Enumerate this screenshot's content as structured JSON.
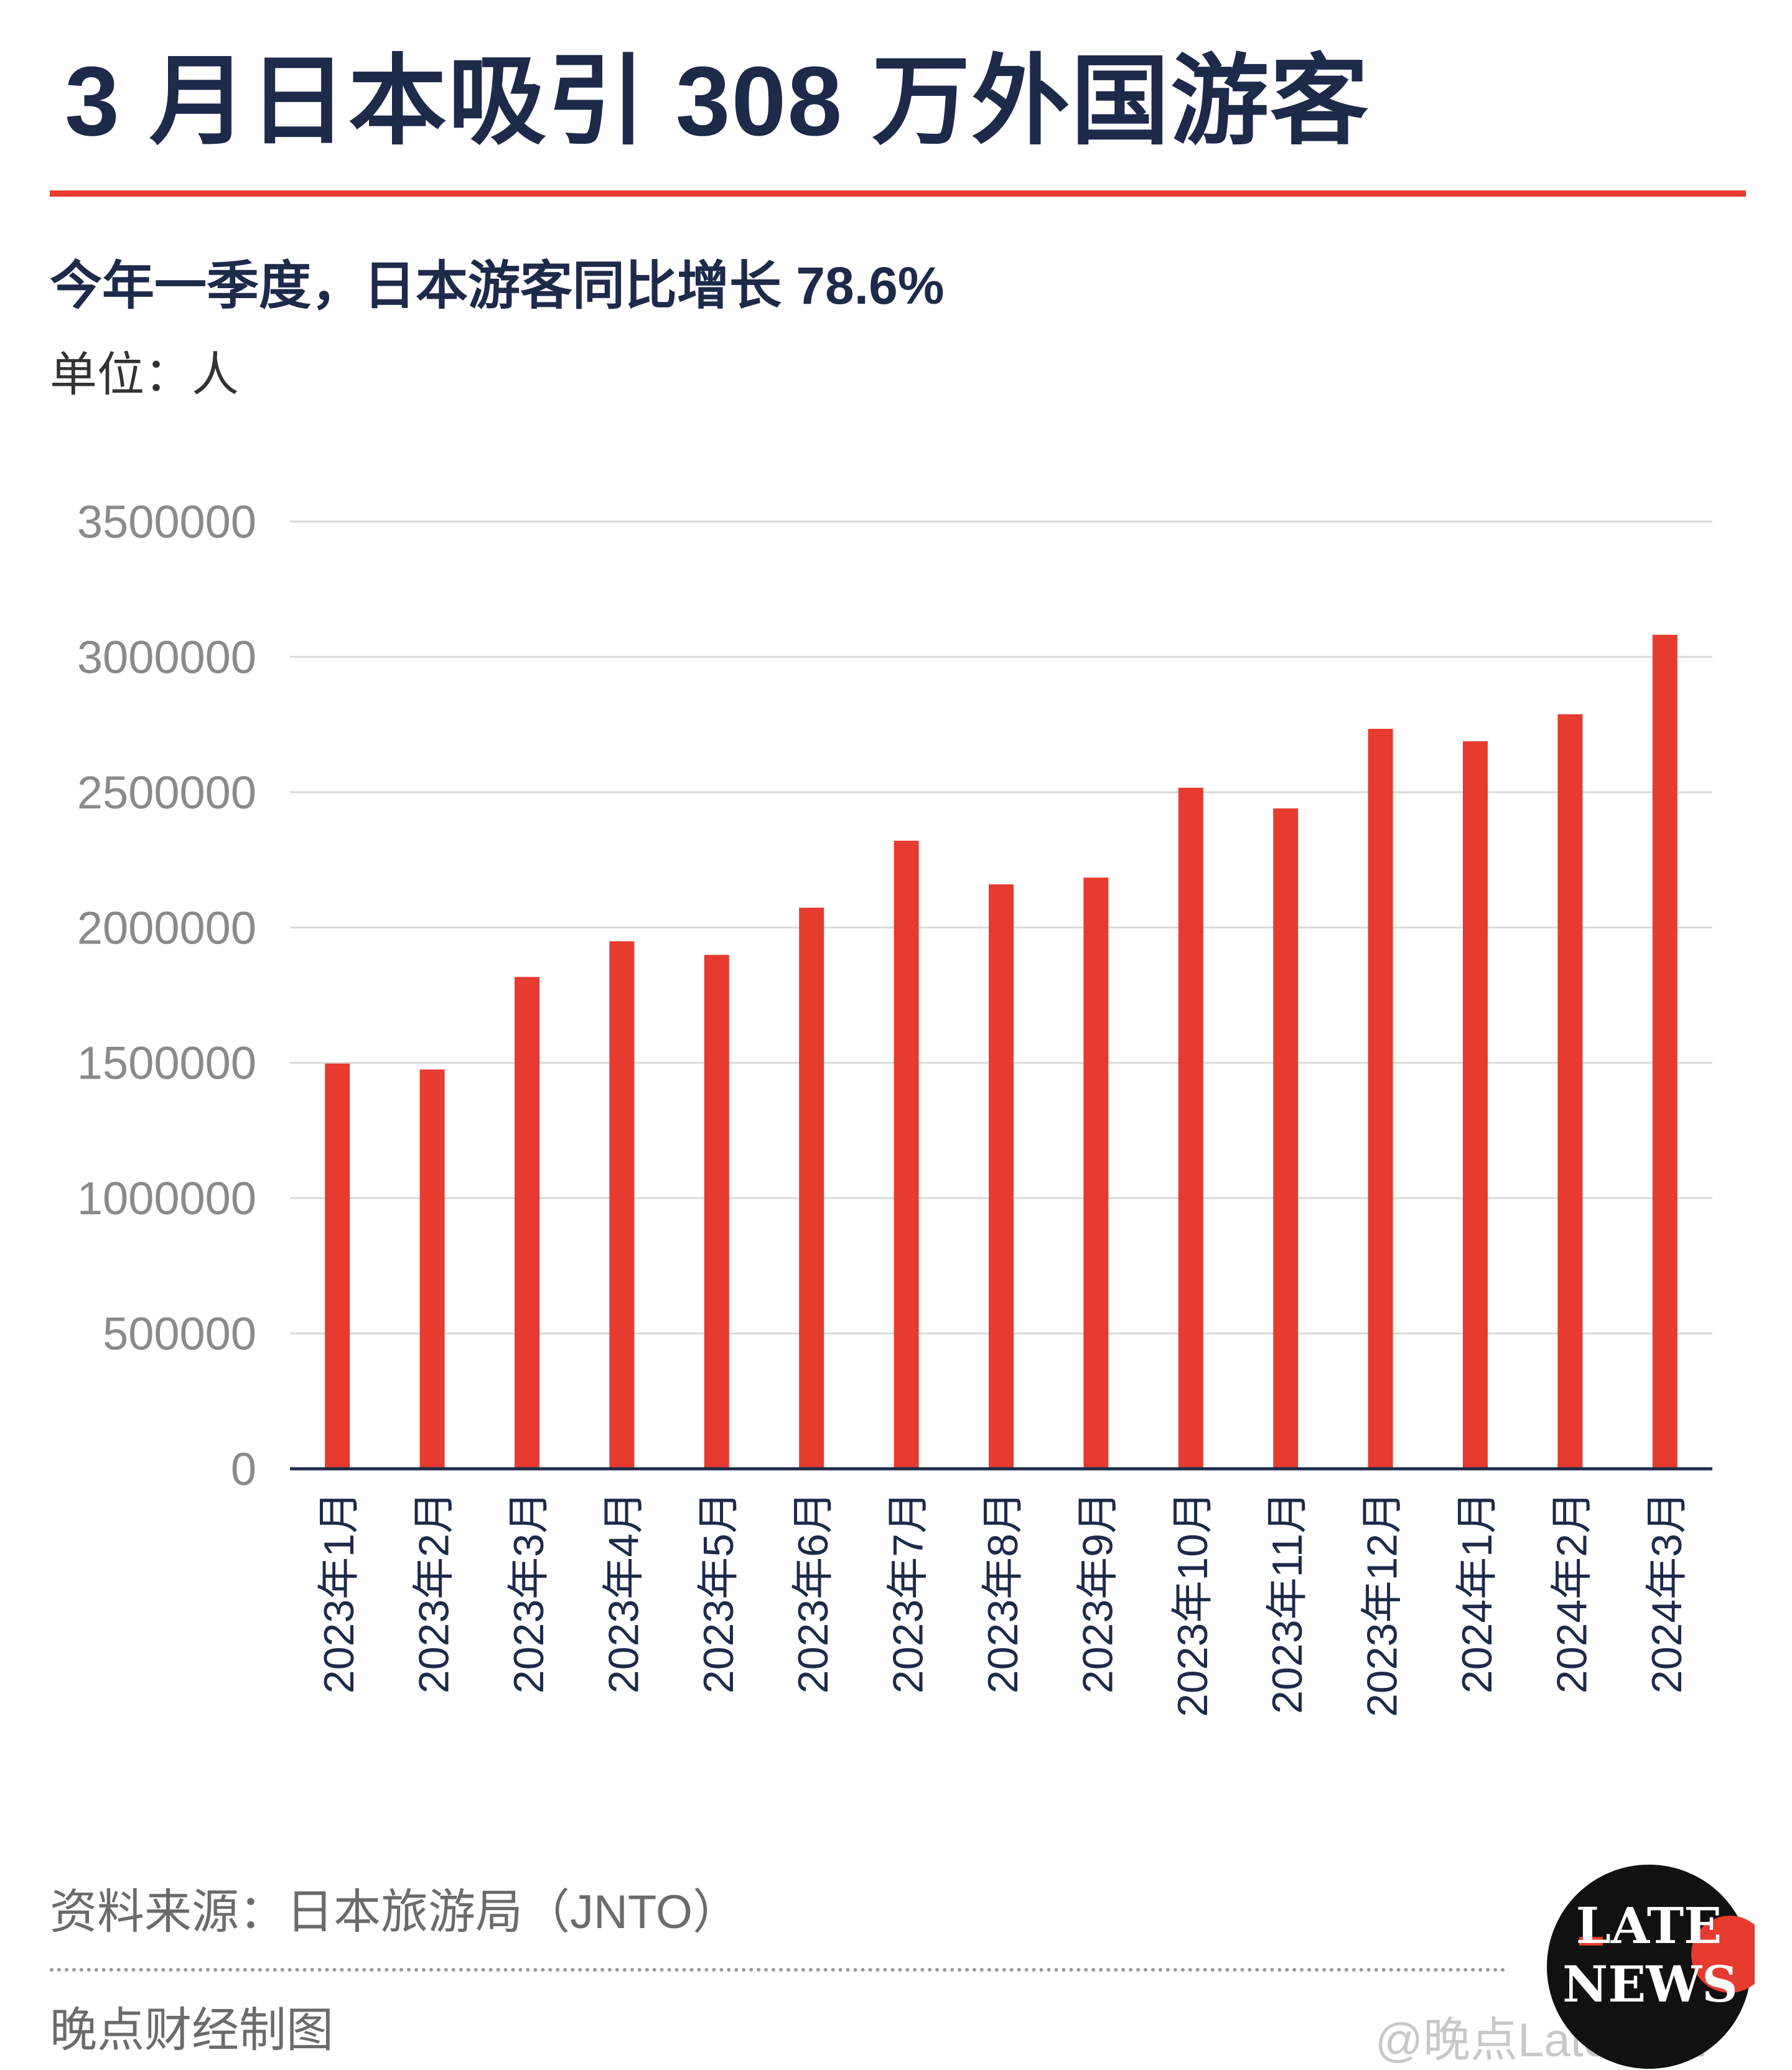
{
  "header": {
    "title": "3 月日本吸引 308 万外国游客",
    "subtitle": "今年一季度，日本游客同比增长 78.6%",
    "unit": "单位：人"
  },
  "colors": {
    "bar": "#e63b2e",
    "title": "#1e2a4a",
    "accent_rule": "#e63b2e",
    "grid": "#d9d9d9",
    "axis_text": "#8a8a8a"
  },
  "chart_data": {
    "type": "bar",
    "title": "3 月日本吸引 308 万外国游客",
    "subtitle": "今年一季度，日本游客同比增长 78.6%",
    "ylabel": "单位：人",
    "xlabel": "",
    "ylim": [
      0,
      3500000
    ],
    "yticks": [
      "0",
      "500000",
      "1000000",
      "1500000",
      "2000000",
      "2500000",
      "3000000",
      "3500000"
    ],
    "grid": true,
    "legend": "none",
    "categories": [
      "2023年1月",
      "2023年2月",
      "2023年3月",
      "2023年4月",
      "2023年5月",
      "2023年6月",
      "2023年7月",
      "2023年8月",
      "2023年9月",
      "2023年10月",
      "2023年11月",
      "2023年12月",
      "2024年1月",
      "2024年2月",
      "2024年3月"
    ],
    "values": [
      1497300,
      1475300,
      1817500,
      1949100,
      1898900,
      2073300,
      2320600,
      2159600,
      2184300,
      2516500,
      2440100,
      2734000,
      2688100,
      2788000,
      3081600
    ]
  },
  "footer": {
    "source": "资料来源：日本旅游局（JNTO）",
    "credit": "晚点财经制图",
    "weibo_handle": "@晚点LatePost"
  },
  "logo": {
    "icon": "late-news-logo",
    "line1": "LATE",
    "line2": "NEWS"
  },
  "watermark": "LATE NEWS"
}
